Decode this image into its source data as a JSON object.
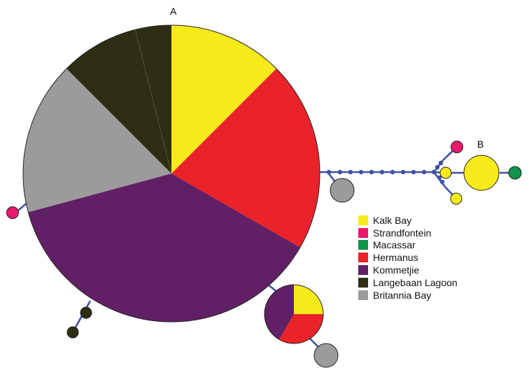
{
  "labels": {
    "a": "A",
    "b": "B"
  },
  "colors": {
    "link": "#3f51a6",
    "outline": "#222222",
    "node": "#3f51a6"
  },
  "populations": [
    {
      "key": "kalk",
      "name": "Kalk Bay",
      "color": "#f7ea1a"
    },
    {
      "key": "strand",
      "name": "Strandfontein",
      "color": "#e8186c"
    },
    {
      "key": "macassar",
      "name": "Macassar",
      "color": "#0f9448"
    },
    {
      "key": "hermanus",
      "name": "Hermanus",
      "color": "#ea2229"
    },
    {
      "key": "kommetjie",
      "name": "Kommetjie",
      "color": "#612065"
    },
    {
      "key": "langebaan",
      "name": "Langebaan Lagoon",
      "color": "#2e2e14"
    },
    {
      "key": "britannia",
      "name": "Britannia Bay",
      "color": "#9b9b9b"
    }
  ],
  "haplotypes": {
    "A": {
      "kalk": 0.125,
      "hermanus": 0.208,
      "kommetjie": 0.375,
      "britannia": 0.167,
      "langebaan": 0.125
    },
    "mixed": {
      "kalk": 0.25,
      "hermanus": 0.333,
      "kommetjie": 0.417
    },
    "B": {
      "kalk": 1.0
    }
  }
}
